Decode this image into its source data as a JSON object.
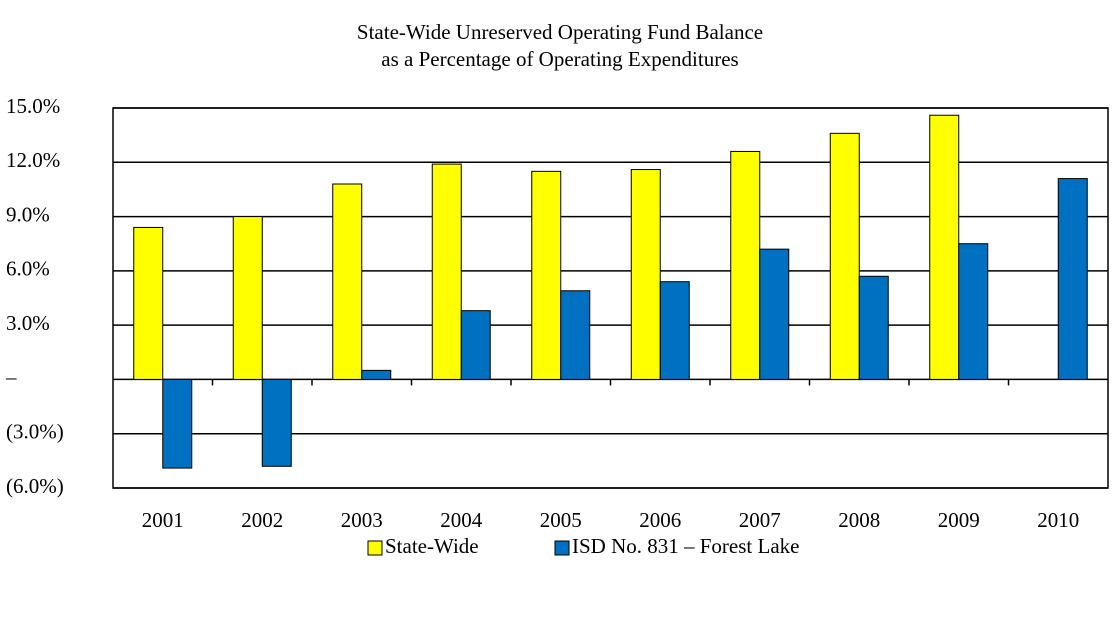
{
  "chart_data": {
    "type": "bar",
    "title": "State-Wide Unreserved Operating Fund Balance",
    "subtitle": "as a Percentage of Operating Expenditures",
    "categories": [
      "2001",
      "2002",
      "2003",
      "2004",
      "2005",
      "2006",
      "2007",
      "2008",
      "2009",
      "2010"
    ],
    "series": [
      {
        "name": "State-Wide",
        "color": "#ffff00",
        "values": [
          8.4,
          9.0,
          10.8,
          11.9,
          11.5,
          11.6,
          12.6,
          13.6,
          14.6,
          null
        ]
      },
      {
        "name": "ISD No. 831 – Forest Lake",
        "color": "#0070c0",
        "values": [
          -4.9,
          -4.8,
          0.5,
          3.8,
          4.9,
          5.4,
          7.2,
          5.7,
          7.5,
          11.1
        ]
      }
    ],
    "ylim": [
      -6,
      15
    ],
    "yticks": [
      {
        "value": 15,
        "label": "15.0%"
      },
      {
        "value": 12,
        "label": "12.0%"
      },
      {
        "value": 9,
        "label": "9.0%"
      },
      {
        "value": 6,
        "label": "6.0%"
      },
      {
        "value": 3,
        "label": "3.0%"
      },
      {
        "value": 0,
        "label": "–"
      },
      {
        "value": -3,
        "label": "(3.0%)"
      },
      {
        "value": -6,
        "label": "(6.0%)"
      }
    ],
    "grid": true,
    "legend": "bottom"
  }
}
